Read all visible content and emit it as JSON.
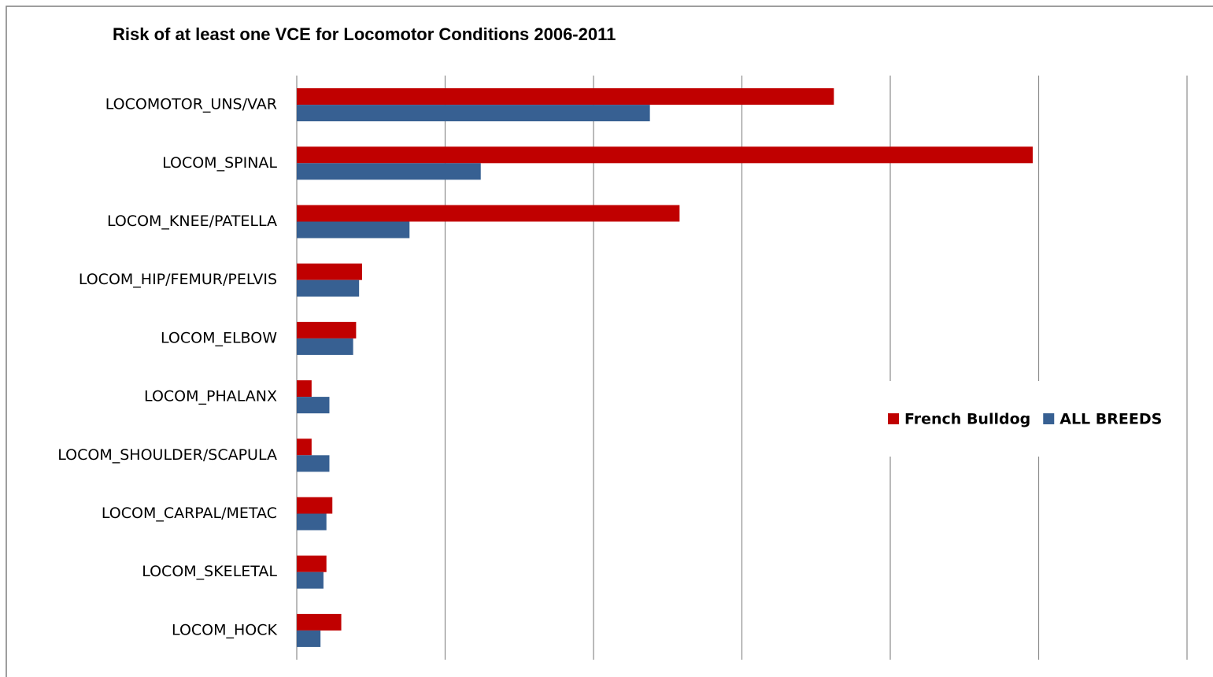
{
  "chart_data": {
    "type": "hbar",
    "title": "Risk of at least one VCE for Locomotor Conditions 2006-2011",
    "categories": [
      "LOCOMOTOR_UNS/VAR",
      "LOCOM_SPINAL",
      "LOCOM_KNEE/PATELLA",
      "LOCOM_HIP/FEMUR/PELVIS",
      "LOCOM_ELBOW",
      "LOCOM_PHALANX",
      "LOCOM_SHOULDER/SCAPULA",
      "LOCOM_CARPAL/METAC",
      "LOCOM_SKELETAL",
      "LOCOM_HOCK"
    ],
    "series": [
      {
        "name": "French Bulldog",
        "color": "#c00000",
        "values": [
          3.62,
          4.96,
          2.58,
          0.44,
          0.4,
          0.1,
          0.1,
          0.24,
          0.2,
          0.3
        ]
      },
      {
        "name": "ALL BREEDS",
        "color": "#376092",
        "values": [
          2.38,
          1.24,
          0.76,
          0.42,
          0.38,
          0.22,
          0.22,
          0.2,
          0.18,
          0.16
        ]
      }
    ],
    "xlim": [
      0,
      6
    ],
    "xticks": [
      0,
      1,
      2,
      3,
      4,
      5,
      6
    ],
    "grid": true,
    "legend": "right"
  }
}
